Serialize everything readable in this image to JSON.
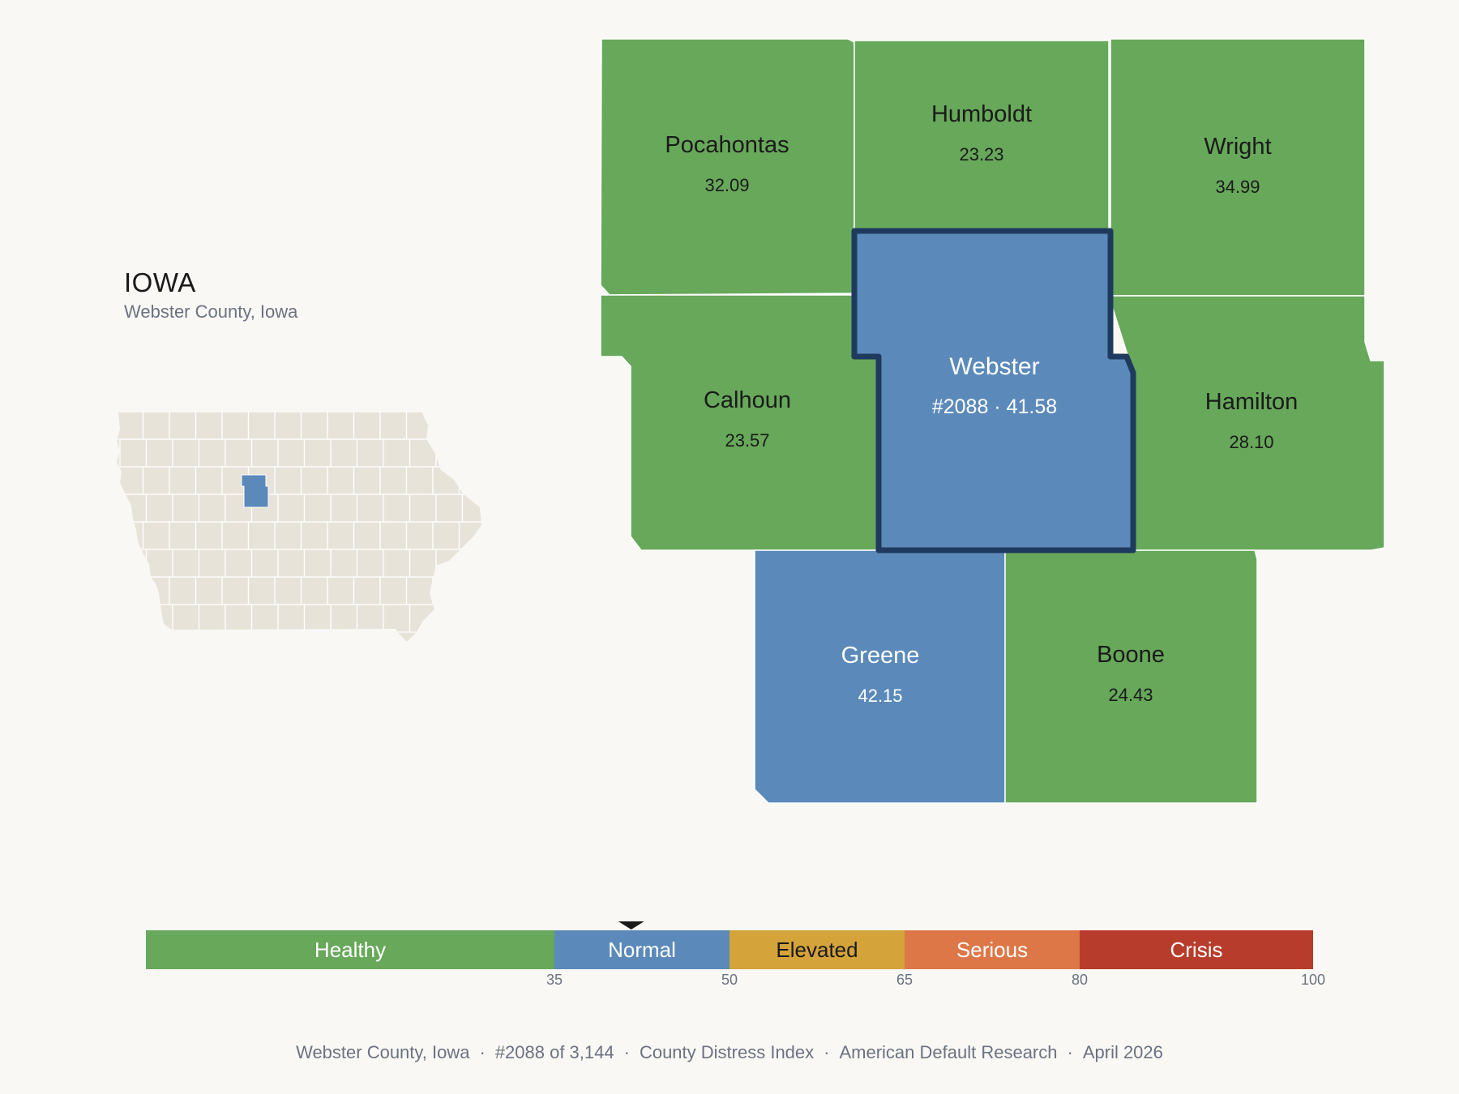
{
  "header": {
    "state": "IOWA",
    "subtitle": "Webster County, Iowa"
  },
  "colors": {
    "background": "#f9f8f5",
    "healthy": "#67a85a",
    "normal": "#5b8aba",
    "elevated": "#d4a33a",
    "serious": "#dd7748",
    "crisis": "#b83c2b",
    "highlight_border": "#1f3a5f",
    "inset_fill": "#e8e3d9"
  },
  "counties": [
    {
      "id": "pocahontas",
      "name": "Pocahontas",
      "value": "32.09",
      "category": "healthy"
    },
    {
      "id": "humboldt",
      "name": "Humboldt",
      "value": "23.23",
      "category": "healthy"
    },
    {
      "id": "wright",
      "name": "Wright",
      "value": "34.99",
      "category": "healthy"
    },
    {
      "id": "calhoun",
      "name": "Calhoun",
      "value": "23.57",
      "category": "healthy"
    },
    {
      "id": "webster",
      "name": "Webster",
      "value": "#2088 · 41.58",
      "category": "normal",
      "selected": true
    },
    {
      "id": "hamilton",
      "name": "Hamilton",
      "value": "28.10",
      "category": "healthy"
    },
    {
      "id": "greene",
      "name": "Greene",
      "value": "42.15",
      "category": "normal"
    },
    {
      "id": "boone",
      "name": "Boone",
      "value": "24.43",
      "category": "healthy"
    }
  ],
  "legend": {
    "segments": [
      {
        "label": "Healthy",
        "from": 0,
        "to": 35,
        "category": "healthy"
      },
      {
        "label": "Normal",
        "from": 35,
        "to": 50,
        "category": "normal"
      },
      {
        "label": "Elevated",
        "from": 50,
        "to": 65,
        "category": "elevated"
      },
      {
        "label": "Serious",
        "from": 65,
        "to": 80,
        "category": "serious"
      },
      {
        "label": "Crisis",
        "from": 80,
        "to": 100,
        "category": "crisis"
      }
    ],
    "ticks": [
      "35",
      "50",
      "65",
      "80",
      "100"
    ],
    "marker_value": 41.58
  },
  "footer": {
    "items": [
      "Webster County, Iowa",
      "#2088 of 3,144",
      "County Distress Index",
      "American Default Research",
      "April 2026"
    ]
  }
}
